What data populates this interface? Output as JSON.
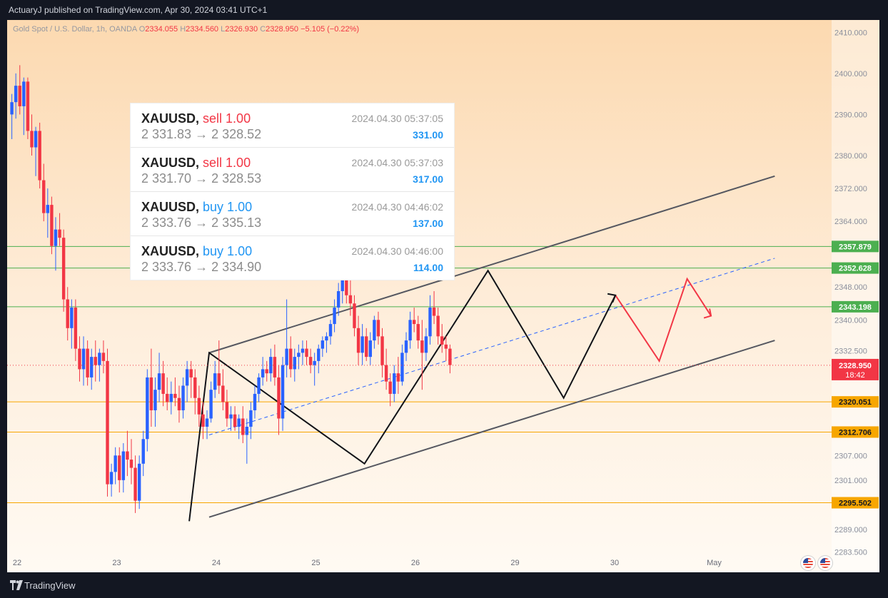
{
  "header": {
    "publisher": "ActuaryJ published on TradingView.com, Apr 30, 2024 03:41 UTC+1"
  },
  "footer": {
    "brand": "TradingView"
  },
  "legend": {
    "symbol": "Gold Spot / U.S. Dollar, 1h, OANDA",
    "open_label": "O",
    "open": "2334.055",
    "high_label": "H",
    "high": "2334.560",
    "low_label": "L",
    "low": "2326.930",
    "close_label": "C",
    "close": "2328.950",
    "change": "−5.105 (−0.22%)"
  },
  "trades": [
    {
      "symbol": "XAUUSD,",
      "side": "sell 1.00",
      "prices": "2 331.83 → 2 328.52",
      "time": "2024.04.30 05:37:05",
      "profit": "331.00"
    },
    {
      "symbol": "XAUUSD,",
      "side": "sell 1.00",
      "prices": "2 331.70 → 2 328.53",
      "time": "2024.04.30 05:37:03",
      "profit": "317.00"
    },
    {
      "symbol": "XAUUSD,",
      "side": "buy 1.00",
      "prices": "2 333.76 → 2 335.13",
      "time": "2024.04.30 04:46:02",
      "profit": "137.00"
    },
    {
      "symbol": "XAUUSD,",
      "side": "buy 1.00",
      "prices": "2 333.76 → 2 334.90",
      "time": "2024.04.30 04:46:00",
      "profit": "114.00"
    }
  ],
  "colors": {
    "up": "#2962ff",
    "down": "#f23645",
    "sell": "#f23645",
    "buy": "#2196f3",
    "green_level": "#4caf50",
    "orange_level": "#f7a600"
  },
  "icons": [
    "tradingview-logo-icon",
    "us-flag-icon"
  ],
  "chart_data": {
    "type": "candlestick",
    "instrument": "Gold Spot / U.S. Dollar",
    "timeframe": "1h",
    "x_tick_labels": [
      "22",
      "23",
      "24",
      "25",
      "26",
      "29",
      "30",
      "May"
    ],
    "x_ticks": [
      0,
      25,
      50,
      75,
      100,
      125,
      150,
      175
    ],
    "price_tick_labels": [
      "2410.000",
      "2400.000",
      "2390.000",
      "2380.000",
      "2372.000",
      "2364.000",
      "2348.000",
      "2340.000",
      "2332.500",
      "2307.000",
      "2301.000",
      "2289.000",
      "2283.500"
    ],
    "price_ticks": [
      2410,
      2400,
      2390,
      2380,
      2372,
      2364,
      2348,
      2340,
      2332.5,
      2307,
      2301,
      2289,
      2283.5
    ],
    "ylim": [
      2281,
      2413
    ],
    "horizontal_levels": [
      {
        "value": 2357.879,
        "label": "2357.879",
        "color": "green"
      },
      {
        "value": 2352.628,
        "label": "2352.628",
        "color": "green"
      },
      {
        "value": 2343.198,
        "label": "2343.198",
        "color": "green"
      },
      {
        "value": 2320.051,
        "label": "2320.051",
        "color": "orange"
      },
      {
        "value": 2312.706,
        "label": "2312.706",
        "color": "orange"
      },
      {
        "value": 2295.502,
        "label": "2295.502",
        "color": "orange"
      }
    ],
    "last_price": {
      "value": 2328.95,
      "label": "2328.950",
      "countdown": "18:42"
    },
    "candles": [
      [
        0,
        2390,
        2395,
        2384,
        2393
      ],
      [
        1,
        2393,
        2400,
        2389,
        2397
      ],
      [
        2,
        2397,
        2402,
        2390,
        2392
      ],
      [
        3,
        2392,
        2399,
        2385,
        2398
      ],
      [
        4,
        2398,
        2399,
        2384,
        2386
      ],
      [
        5,
        2386,
        2390,
        2380,
        2382
      ],
      [
        6,
        2382,
        2387,
        2375,
        2386
      ],
      [
        7,
        2386,
        2388,
        2372,
        2374
      ],
      [
        8,
        2374,
        2378,
        2364,
        2366
      ],
      [
        9,
        2366,
        2372,
        2360,
        2368
      ],
      [
        10,
        2368,
        2370,
        2356,
        2358
      ],
      [
        11,
        2358,
        2365,
        2352,
        2362
      ],
      [
        12,
        2362,
        2366,
        2358,
        2360
      ],
      [
        13,
        2360,
        2362,
        2342,
        2345
      ],
      [
        14,
        2345,
        2348,
        2335,
        2338
      ],
      [
        15,
        2338,
        2345,
        2333,
        2343
      ],
      [
        16,
        2343,
        2345,
        2330,
        2333
      ],
      [
        17,
        2333,
        2336,
        2325,
        2328
      ],
      [
        18,
        2328,
        2336,
        2324,
        2333
      ],
      [
        19,
        2333,
        2335,
        2324,
        2326
      ],
      [
        20,
        2326,
        2333,
        2323,
        2331
      ],
      [
        21,
        2331,
        2335,
        2325,
        2329
      ],
      [
        22,
        2329,
        2333,
        2325,
        2332
      ],
      [
        23,
        2332,
        2335,
        2327,
        2330
      ],
      [
        24,
        2330,
        2333,
        2297,
        2300
      ],
      [
        25,
        2300,
        2305,
        2297,
        2303
      ],
      [
        26,
        2303,
        2309,
        2300,
        2307
      ],
      [
        27,
        2307,
        2309,
        2298,
        2301
      ],
      [
        28,
        2301,
        2310,
        2298,
        2308
      ],
      [
        29,
        2308,
        2313,
        2302,
        2306
      ],
      [
        30,
        2306,
        2311,
        2300,
        2304
      ],
      [
        31,
        2304,
        2307,
        2293,
        2296
      ],
      [
        32,
        2296,
        2307,
        2294,
        2305
      ],
      [
        33,
        2305,
        2313,
        2302,
        2311
      ],
      [
        34,
        2311,
        2328,
        2308,
        2326
      ],
      [
        35,
        2326,
        2333,
        2314,
        2318
      ],
      [
        36,
        2318,
        2326,
        2314,
        2323
      ],
      [
        37,
        2323,
        2332,
        2320,
        2327
      ],
      [
        38,
        2327,
        2330,
        2319,
        2322
      ],
      [
        39,
        2322,
        2326,
        2318,
        2320
      ],
      [
        40,
        2320,
        2325,
        2317,
        2322
      ],
      [
        41,
        2322,
        2326,
        2319,
        2321
      ],
      [
        42,
        2321,
        2324,
        2315,
        2318
      ],
      [
        43,
        2318,
        2326,
        2316,
        2324
      ],
      [
        44,
        2324,
        2330,
        2320,
        2328
      ],
      [
        45,
        2328,
        2330,
        2321,
        2326
      ],
      [
        46,
        2326,
        2328,
        2317,
        2321
      ],
      [
        47,
        2321,
        2324,
        2314,
        2317
      ],
      [
        48,
        2317,
        2320,
        2311,
        2314
      ],
      [
        49,
        2314,
        2318,
        2311,
        2316
      ],
      [
        50,
        2316,
        2325,
        2315,
        2323
      ],
      [
        51,
        2323,
        2330,
        2321,
        2327
      ],
      [
        52,
        2327,
        2335,
        2322,
        2324
      ],
      [
        53,
        2324,
        2328,
        2318,
        2320
      ],
      [
        54,
        2320,
        2323,
        2314,
        2316
      ],
      [
        55,
        2316,
        2319,
        2313,
        2317
      ],
      [
        56,
        2317,
        2319,
        2313,
        2314
      ],
      [
        57,
        2314,
        2317,
        2311,
        2316
      ],
      [
        58,
        2316,
        2319,
        2310,
        2312
      ],
      [
        59,
        2312,
        2316,
        2305,
        2314
      ],
      [
        60,
        2314,
        2320,
        2311,
        2318
      ],
      [
        61,
        2318,
        2324,
        2316,
        2322
      ],
      [
        62,
        2322,
        2327,
        2320,
        2326
      ],
      [
        63,
        2326,
        2331,
        2324,
        2328
      ],
      [
        64,
        2328,
        2330,
        2325,
        2327
      ],
      [
        65,
        2327,
        2333,
        2325,
        2331
      ],
      [
        66,
        2331,
        2334,
        2324,
        2326
      ],
      [
        67,
        2326,
        2329,
        2312,
        2316
      ],
      [
        68,
        2316,
        2331,
        2313,
        2329
      ],
      [
        69,
        2329,
        2345,
        2326,
        2333
      ],
      [
        70,
        2333,
        2336,
        2326,
        2328
      ],
      [
        71,
        2328,
        2333,
        2325,
        2331
      ],
      [
        72,
        2331,
        2334,
        2328,
        2332
      ],
      [
        73,
        2332,
        2335,
        2329,
        2333
      ],
      [
        74,
        2333,
        2335,
        2329,
        2331
      ],
      [
        75,
        2331,
        2333,
        2327,
        2329
      ],
      [
        76,
        2329,
        2332,
        2324,
        2330
      ],
      [
        77,
        2330,
        2334,
        2327,
        2333
      ],
      [
        78,
        2333,
        2336,
        2331,
        2335
      ],
      [
        79,
        2335,
        2337,
        2332,
        2336
      ],
      [
        80,
        2336,
        2340,
        2334,
        2339
      ],
      [
        81,
        2339,
        2345,
        2337,
        2343
      ],
      [
        82,
        2343,
        2349,
        2341,
        2347
      ],
      [
        83,
        2347,
        2353,
        2344,
        2350
      ],
      [
        84,
        2350,
        2352,
        2344,
        2346
      ],
      [
        85,
        2346,
        2350,
        2341,
        2344
      ],
      [
        86,
        2344,
        2346,
        2336,
        2338
      ],
      [
        87,
        2338,
        2341,
        2329,
        2332
      ],
      [
        88,
        2332,
        2339,
        2329,
        2336
      ],
      [
        89,
        2336,
        2338,
        2330,
        2331
      ],
      [
        90,
        2331,
        2337,
        2329,
        2335
      ],
      [
        91,
        2335,
        2341,
        2333,
        2340
      ],
      [
        92,
        2340,
        2342,
        2334,
        2336
      ],
      [
        93,
        2336,
        2338,
        2326,
        2329
      ],
      [
        94,
        2329,
        2333,
        2323,
        2325
      ],
      [
        95,
        2325,
        2327,
        2319,
        2322
      ],
      [
        96,
        2322,
        2329,
        2320,
        2327
      ],
      [
        97,
        2327,
        2331,
        2322,
        2325
      ],
      [
        98,
        2325,
        2334,
        2324,
        2332
      ],
      [
        99,
        2332,
        2337,
        2330,
        2335
      ],
      [
        100,
        2335,
        2342,
        2333,
        2340
      ],
      [
        101,
        2340,
        2343,
        2337,
        2339
      ],
      [
        102,
        2339,
        2341,
        2333,
        2335
      ],
      [
        103,
        2335,
        2340,
        2323,
        2332
      ],
      [
        104,
        2332,
        2338,
        2330,
        2336
      ],
      [
        105,
        2336,
        2346,
        2334,
        2343
      ],
      [
        106,
        2343,
        2347,
        2339,
        2341
      ],
      [
        107,
        2341,
        2343,
        2334,
        2336
      ],
      [
        108,
        2336,
        2339,
        2332,
        2334
      ],
      [
        109,
        2334,
        2336,
        2330,
        2333
      ],
      [
        110,
        2333,
        2334,
        2327,
        2329
      ]
    ],
    "annotations": {
      "channel_upper": [
        [
          50,
          2332
        ],
        [
          192,
          2375
        ]
      ],
      "channel_lower": [
        [
          50,
          2292
        ],
        [
          192,
          2335
        ]
      ],
      "channel_mid_dashed": [
        [
          50,
          2312
        ],
        [
          192,
          2355
        ]
      ],
      "zigzag": [
        [
          45,
          2291
        ],
        [
          50,
          2332
        ],
        [
          89,
          2305
        ],
        [
          120,
          2352
        ],
        [
          139,
          2321
        ],
        [
          152,
          2346
        ]
      ],
      "projection": [
        [
          152,
          2346
        ],
        [
          163,
          2330
        ],
        [
          170,
          2350
        ],
        [
          176,
          2341
        ]
      ]
    }
  }
}
